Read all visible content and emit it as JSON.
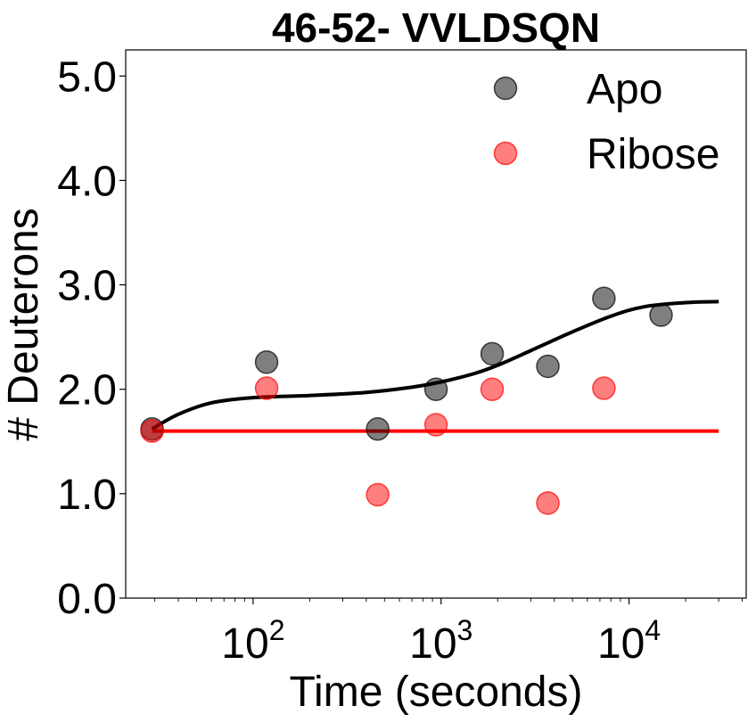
{
  "chart_data": {
    "type": "scatter",
    "title": "46-52- VVLDSQN",
    "xlabel": "Time (seconds)",
    "ylabel": "# Deuterons",
    "x_scale": "log",
    "xlim": [
      21,
      42000
    ],
    "ylim": [
      0,
      5.25
    ],
    "yticks": [
      0,
      1,
      2,
      3,
      4,
      5
    ],
    "ytick_labels": [
      "0.0",
      "1.0",
      "2.0",
      "3.0",
      "4.0",
      "5.0"
    ],
    "xtick_labels": [
      {
        "base": "10",
        "exp": "2"
      },
      {
        "base": "10",
        "exp": "3"
      },
      {
        "base": "10",
        "exp": "4"
      }
    ],
    "legend_position": "top-right",
    "grid": false,
    "series": [
      {
        "name": "Apo",
        "color": "#000000",
        "opacity": 0.5,
        "points": [
          {
            "x": 29,
            "y": 1.62
          },
          {
            "x": 118,
            "y": 2.26
          },
          {
            "x": 460,
            "y": 1.62
          },
          {
            "x": 940,
            "y": 2.0
          },
          {
            "x": 1870,
            "y": 2.34
          },
          {
            "x": 3700,
            "y": 2.22
          },
          {
            "x": 7350,
            "y": 2.87
          },
          {
            "x": 14800,
            "y": 2.71
          }
        ],
        "fit": [
          {
            "x": 29,
            "y": 1.62
          },
          {
            "x": 40,
            "y": 1.76
          },
          {
            "x": 60,
            "y": 1.87
          },
          {
            "x": 100,
            "y": 1.92
          },
          {
            "x": 200,
            "y": 1.94
          },
          {
            "x": 400,
            "y": 1.97
          },
          {
            "x": 700,
            "y": 2.02
          },
          {
            "x": 1000,
            "y": 2.07
          },
          {
            "x": 1500,
            "y": 2.15
          },
          {
            "x": 2000,
            "y": 2.23
          },
          {
            "x": 3000,
            "y": 2.37
          },
          {
            "x": 5000,
            "y": 2.55
          },
          {
            "x": 8000,
            "y": 2.7
          },
          {
            "x": 12000,
            "y": 2.79
          },
          {
            "x": 20000,
            "y": 2.83
          },
          {
            "x": 30000,
            "y": 2.84
          }
        ]
      },
      {
        "name": "Ribose",
        "color": "#ff0000",
        "opacity": 0.5,
        "points": [
          {
            "x": 29,
            "y": 1.6
          },
          {
            "x": 118,
            "y": 2.01
          },
          {
            "x": 460,
            "y": 0.99
          },
          {
            "x": 940,
            "y": 1.66
          },
          {
            "x": 1870,
            "y": 2.0
          },
          {
            "x": 3700,
            "y": 0.91
          },
          {
            "x": 7350,
            "y": 2.01
          }
        ],
        "fit": [
          {
            "x": 29,
            "y": 1.6
          },
          {
            "x": 30000,
            "y": 1.6
          }
        ]
      }
    ]
  }
}
